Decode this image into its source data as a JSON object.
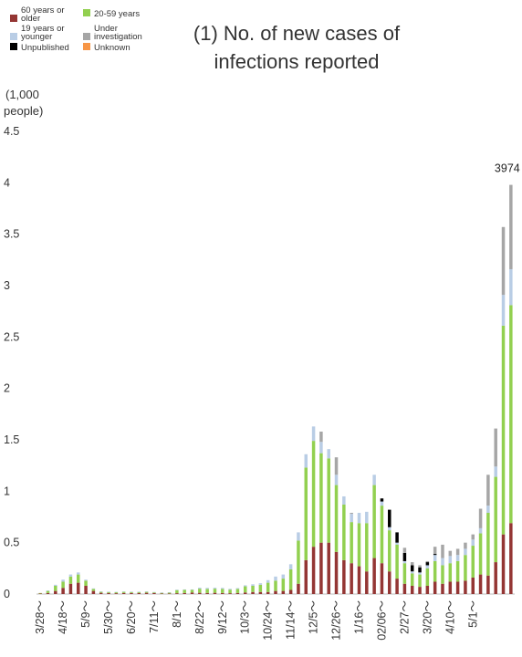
{
  "chart_data": {
    "type": "bar",
    "stacked": true,
    "title_line1": "(1) No. of new cases of",
    "title_line2": "infections reported",
    "unit_line1": "(1,000",
    "unit_line2": "people)",
    "ylim": [
      0,
      4.5
    ],
    "y_ticks": [
      "0",
      "0.5",
      "1",
      "1.5",
      "2",
      "2.5",
      "3",
      "3.5",
      "4",
      "4.5"
    ],
    "x_ticks": [
      "3/28～",
      "4/18～",
      "5/9～",
      "5/30～",
      "6/20～",
      "7/11～",
      "8/1～",
      "8/22～",
      "9/12～",
      "10/3～",
      "10/24～",
      "11/14～",
      "12/5～",
      "12/26～",
      "1/16～",
      "02/06～",
      "2/27～",
      "3/20～",
      "4/10～",
      "5/1～"
    ],
    "grid": false,
    "legend_placement": "top-left",
    "peak_label": "3974",
    "series": [
      {
        "name": "60 years or older",
        "label_line1": "60 years or",
        "label_line2": "older",
        "color": "#943634",
        "values": [
          0.005,
          0.01,
          0.03,
          0.06,
          0.1,
          0.11,
          0.08,
          0.03,
          0.012,
          0.01,
          0.008,
          0.01,
          0.01,
          0.01,
          0.012,
          0.01,
          0.005,
          0.005,
          0.008,
          0.01,
          0.015,
          0.012,
          0.01,
          0.012,
          0.01,
          0.008,
          0.01,
          0.015,
          0.02,
          0.02,
          0.02,
          0.03,
          0.03,
          0.04,
          0.1,
          0.33,
          0.46,
          0.5,
          0.5,
          0.41,
          0.33,
          0.3,
          0.27,
          0.22,
          0.35,
          0.3,
          0.22,
          0.15,
          0.1,
          0.08,
          0.07,
          0.08,
          0.12,
          0.1,
          0.12,
          0.12,
          0.13,
          0.16,
          0.19,
          0.18,
          0.31,
          0.58,
          0.69
        ]
      },
      {
        "name": "20-59 years",
        "label_line1": "20-59 years",
        "label_line2": "",
        "color": "#92d050",
        "values": [
          0.005,
          0.02,
          0.05,
          0.06,
          0.07,
          0.08,
          0.05,
          0.02,
          0.01,
          0.01,
          0.01,
          0.012,
          0.01,
          0.01,
          0.01,
          0.008,
          0.008,
          0.01,
          0.03,
          0.03,
          0.025,
          0.04,
          0.04,
          0.04,
          0.04,
          0.035,
          0.04,
          0.06,
          0.06,
          0.07,
          0.09,
          0.1,
          0.12,
          0.2,
          0.42,
          0.9,
          1.03,
          0.87,
          0.82,
          0.65,
          0.54,
          0.4,
          0.42,
          0.47,
          0.71,
          0.56,
          0.4,
          0.33,
          0.2,
          0.12,
          0.12,
          0.17,
          0.2,
          0.18,
          0.18,
          0.2,
          0.25,
          0.31,
          0.4,
          0.61,
          0.83,
          2.03,
          2.12
        ]
      },
      {
        "name": "19 years or younger",
        "label_line1": "19 years or",
        "label_line2": "younger",
        "color": "#b9cde5",
        "values": [
          0,
          0.005,
          0.01,
          0.02,
          0.02,
          0.02,
          0.01,
          0.005,
          0.003,
          0.003,
          0.003,
          0.003,
          0.003,
          0.003,
          0.003,
          0.002,
          0.002,
          0.002,
          0.005,
          0.005,
          0.005,
          0.01,
          0.01,
          0.01,
          0.01,
          0.008,
          0.008,
          0.01,
          0.015,
          0.015,
          0.025,
          0.04,
          0.04,
          0.05,
          0.08,
          0.13,
          0.14,
          0.11,
          0.09,
          0.1,
          0.08,
          0.08,
          0.1,
          0.11,
          0.1,
          0.04,
          0.03,
          0.02,
          0.02,
          0.02,
          0.02,
          0.03,
          0.06,
          0.07,
          0.07,
          0.06,
          0.06,
          0.06,
          0.05,
          0.07,
          0.1,
          0.3,
          0.35
        ]
      },
      {
        "name": "Unpublished",
        "label_line1": "Unpublished",
        "label_line2": "",
        "color": "#000000",
        "values": [
          0,
          0,
          0,
          0,
          0,
          0,
          0,
          0,
          0,
          0,
          0,
          0,
          0,
          0,
          0,
          0,
          0,
          0,
          0,
          0,
          0,
          0,
          0,
          0,
          0,
          0,
          0,
          0,
          0,
          0,
          0,
          0,
          0,
          0,
          0,
          0,
          0,
          0,
          0,
          0,
          0,
          0,
          0,
          0,
          0,
          0.03,
          0.17,
          0.1,
          0.08,
          0.06,
          0.05,
          0.03,
          0.01,
          0,
          0,
          0,
          0,
          0,
          0,
          0,
          0,
          0,
          0
        ]
      },
      {
        "name": "Under investigation",
        "label_line1": "Under",
        "label_line2": "investigation",
        "color": "#a6a6a6",
        "values": [
          0,
          0,
          0,
          0,
          0,
          0,
          0,
          0,
          0,
          0,
          0,
          0,
          0,
          0,
          0,
          0,
          0,
          0,
          0,
          0,
          0,
          0,
          0,
          0,
          0,
          0,
          0,
          0,
          0,
          0,
          0,
          0,
          0,
          0,
          0,
          0,
          0,
          0.1,
          0,
          0.17,
          0,
          0.01,
          0,
          0,
          0,
          0,
          0,
          0,
          0.05,
          0.03,
          0.02,
          0.01,
          0.07,
          0.13,
          0.05,
          0.06,
          0.06,
          0.05,
          0.19,
          0.3,
          0.37,
          0.66,
          0.82
        ]
      },
      {
        "name": "Unknown",
        "label_line1": "Unknown",
        "label_line2": "",
        "color": "#f79646",
        "values": [
          0,
          0,
          0,
          0,
          0,
          0,
          0,
          0,
          0,
          0,
          0,
          0,
          0,
          0,
          0,
          0,
          0,
          0,
          0,
          0,
          0,
          0,
          0,
          0,
          0,
          0,
          0,
          0,
          0,
          0,
          0,
          0,
          0,
          0,
          0,
          0,
          0,
          0,
          0,
          0,
          0,
          0,
          0,
          0,
          0,
          0,
          0,
          0,
          0,
          0,
          0,
          0,
          0,
          0,
          0,
          0,
          0,
          0,
          0,
          0,
          0,
          0,
          0
        ]
      }
    ]
  }
}
